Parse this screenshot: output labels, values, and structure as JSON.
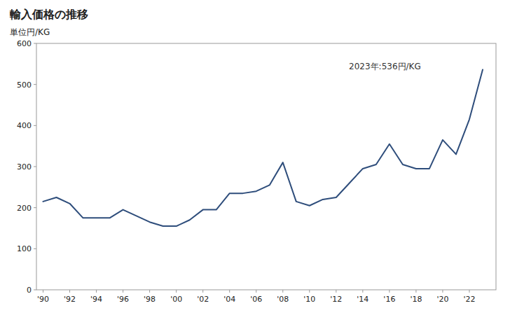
{
  "chart_data": {
    "type": "line",
    "title": "輸入価格の推移",
    "y_label": "単位円/KG",
    "annotation": "2023年:536円/KG",
    "x": [
      1990,
      1991,
      1992,
      1993,
      1994,
      1995,
      1996,
      1997,
      1998,
      1999,
      2000,
      2001,
      2002,
      2003,
      2004,
      2005,
      2006,
      2007,
      2008,
      2009,
      2010,
      2011,
      2012,
      2013,
      2014,
      2015,
      2016,
      2017,
      2018,
      2019,
      2020,
      2021,
      2022,
      2023
    ],
    "values": [
      215,
      225,
      210,
      175,
      175,
      175,
      195,
      180,
      165,
      155,
      155,
      170,
      195,
      195,
      235,
      235,
      240,
      255,
      310,
      215,
      205,
      220,
      225,
      260,
      295,
      305,
      355,
      305,
      295,
      295,
      365,
      330,
      415,
      536
    ],
    "color": "#2e4d7b",
    "xlim": [
      1989.5,
      2024.0
    ],
    "xticks": [
      {
        "value": 1990,
        "label": "'90"
      },
      {
        "value": 1992,
        "label": "'92"
      },
      {
        "value": 1994,
        "label": "'94"
      },
      {
        "value": 1996,
        "label": "'96"
      },
      {
        "value": 1998,
        "label": "'98"
      },
      {
        "value": 2000,
        "label": "'00"
      },
      {
        "value": 2002,
        "label": "'02"
      },
      {
        "value": 2004,
        "label": "'04"
      },
      {
        "value": 2006,
        "label": "'06"
      },
      {
        "value": 2008,
        "label": "'08"
      },
      {
        "value": 2010,
        "label": "'10"
      },
      {
        "value": 2012,
        "label": "'12"
      },
      {
        "value": 2014,
        "label": "'14"
      },
      {
        "value": 2016,
        "label": "'16"
      },
      {
        "value": 2018,
        "label": "'18"
      },
      {
        "value": 2020,
        "label": "'20"
      },
      {
        "value": 2022,
        "label": "'22"
      }
    ],
    "ylim": [
      0,
      600
    ],
    "yticks": [
      0,
      100,
      200,
      300,
      400,
      500,
      600
    ],
    "grid": false
  }
}
